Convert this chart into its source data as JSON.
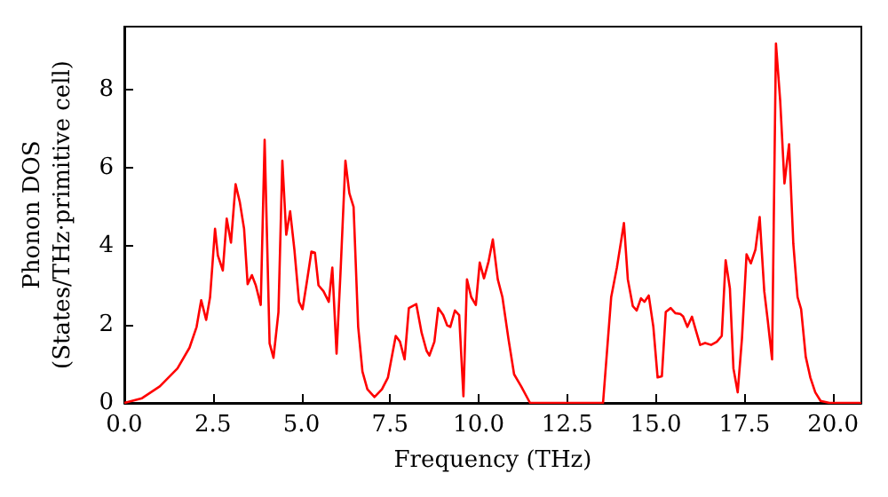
{
  "chart_data": {
    "type": "line",
    "xlabel": "Frequency (THz)",
    "ylabel": "Phonon DOS\n(States/THz·primitive cell)",
    "xlim": [
      0,
      20.8
    ],
    "ylim": [
      0,
      9.6
    ],
    "xticks": [
      {
        "value": 0,
        "label": "0.0"
      },
      {
        "value": 2.5,
        "label": "2.5"
      },
      {
        "value": 5,
        "label": "5.0"
      },
      {
        "value": 7.5,
        "label": "7.5"
      },
      {
        "value": 10,
        "label": "10.0"
      },
      {
        "value": 12.5,
        "label": "12.5"
      },
      {
        "value": 15,
        "label": "15.0"
      },
      {
        "value": 17.5,
        "label": "17.5"
      },
      {
        "value": 20,
        "label": "20.0"
      }
    ],
    "yticks": [
      0,
      2,
      4,
      6,
      8
    ],
    "grid": false,
    "marker": "none",
    "line_style": "solid",
    "series": [
      {
        "color": "#ff0000",
        "x": [
          0,
          0.5,
          1.0,
          1.5,
          1.84,
          2.04,
          2.14,
          2.17,
          2.31,
          2.42,
          2.56,
          2.64,
          2.78,
          2.89,
          3.01,
          3.14,
          3.26,
          3.38,
          3.48,
          3.6,
          3.71,
          3.85,
          3.96,
          4.1,
          4.21,
          4.35,
          4.46,
          4.57,
          4.68,
          4.8,
          4.93,
          5.03,
          5.15,
          5.28,
          5.38,
          5.48,
          5.62,
          5.77,
          5.87,
          5.99,
          6.1,
          6.24,
          6.35,
          6.47,
          6.6,
          6.72,
          6.86,
          7.06,
          7.27,
          7.44,
          7.66,
          7.78,
          7.91,
          8.03,
          8.24,
          8.39,
          8.53,
          8.61,
          8.75,
          8.86,
          9.0,
          9.11,
          9.2,
          9.33,
          9.45,
          9.57,
          9.67,
          9.79,
          9.92,
          10.03,
          10.15,
          10.28,
          10.4,
          10.54,
          10.67,
          10.84,
          11.0,
          11.2,
          11.45,
          13.51,
          13.74,
          13.9,
          14.1,
          14.21,
          14.35,
          14.46,
          14.58,
          14.68,
          14.8,
          14.93,
          15.05,
          15.17,
          15.28,
          15.42,
          15.55,
          15.69,
          15.77,
          15.89,
          16.02,
          16.14,
          16.25,
          16.39,
          16.56,
          16.72,
          16.86,
          16.97,
          17.09,
          17.19,
          17.31,
          17.43,
          17.56,
          17.68,
          17.81,
          17.93,
          18.06,
          18.16,
          18.28,
          18.39,
          18.51,
          18.63,
          18.76,
          18.88,
          19.0,
          19.1,
          19.23,
          19.36,
          19.5,
          19.65,
          19.9,
          20.8
        ],
        "values": [
          0,
          0.12,
          0.42,
          0.88,
          1.41,
          1.94,
          2.47,
          2.62,
          2.12,
          2.7,
          4.44,
          3.76,
          3.38,
          4.7,
          4.09,
          5.58,
          5.12,
          4.44,
          3.03,
          3.26,
          3.0,
          2.5,
          6.71,
          1.52,
          1.15,
          2.32,
          6.18,
          4.29,
          4.89,
          3.91,
          2.58,
          2.39,
          3.08,
          3.86,
          3.83,
          3.0,
          2.85,
          2.58,
          3.45,
          1.26,
          3.3,
          6.18,
          5.35,
          5.0,
          1.94,
          0.8,
          0.35,
          0.15,
          0.35,
          0.65,
          1.71,
          1.56,
          1.11,
          2.42,
          2.52,
          1.79,
          1.33,
          1.21,
          1.56,
          2.42,
          2.24,
          1.98,
          1.94,
          2.36,
          2.24,
          0.17,
          3.15,
          2.7,
          2.5,
          3.58,
          3.18,
          3.61,
          4.17,
          3.15,
          2.7,
          1.64,
          0.73,
          0.42,
          0,
          0,
          2.7,
          3.45,
          4.59,
          3.15,
          2.47,
          2.36,
          2.67,
          2.58,
          2.74,
          1.94,
          0.65,
          0.68,
          2.32,
          2.42,
          2.29,
          2.27,
          2.21,
          1.94,
          2.2,
          1.82,
          1.48,
          1.53,
          1.48,
          1.56,
          1.71,
          3.64,
          2.92,
          0.88,
          0.27,
          1.64,
          3.79,
          3.56,
          3.91,
          4.74,
          2.85,
          2.09,
          1.11,
          9.17,
          7.7,
          5.6,
          6.6,
          4.06,
          2.7,
          2.39,
          1.18,
          0.65,
          0.27,
          0.05,
          0,
          0
        ]
      }
    ]
  }
}
